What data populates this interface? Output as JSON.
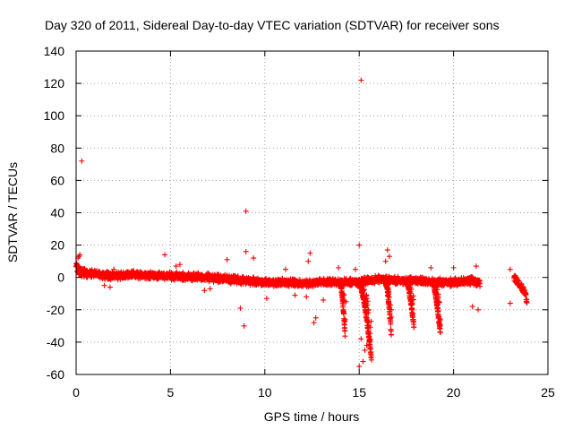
{
  "chart_data": {
    "type": "scatter",
    "title": "Day 320 of 2011, Sidereal Day-to-day VTEC variation (SDTVAR) for receiver sons",
    "xlabel": "GPS time / hours",
    "ylabel": "SDTVAR / TECUs",
    "xlim": [
      0,
      25
    ],
    "ylim": [
      -60,
      140
    ],
    "x_ticks": [
      0,
      5,
      10,
      15,
      20,
      25
    ],
    "y_ticks": [
      -60,
      -40,
      -20,
      0,
      20,
      40,
      60,
      80,
      100,
      120,
      140
    ],
    "x_tick_labels": [
      "0",
      "5",
      "10",
      "15",
      "20",
      "25"
    ],
    "y_tick_labels": [
      "-60",
      "-40",
      "-20",
      "0",
      "20",
      "40",
      "60",
      "80",
      "100",
      "120",
      "140"
    ],
    "grid": true,
    "marker": "+",
    "color": "#ff0000",
    "series": [
      {
        "name": "SDTVAR",
        "baseline": [
          [
            0,
            6
          ],
          [
            0.3,
            3
          ],
          [
            1,
            2
          ],
          [
            2,
            1
          ],
          [
            3,
            1.5
          ],
          [
            4,
            1.5
          ],
          [
            5,
            1
          ],
          [
            6,
            0.5
          ],
          [
            7,
            0
          ],
          [
            8,
            -1
          ],
          [
            9,
            -2
          ],
          [
            10,
            -3
          ],
          [
            11,
            -3
          ],
          [
            12,
            -4
          ],
          [
            13,
            -3
          ],
          [
            14,
            -3
          ],
          [
            15,
            -3
          ],
          [
            16,
            -1
          ],
          [
            17,
            -2
          ],
          [
            18,
            -2
          ],
          [
            19,
            -3
          ],
          [
            20,
            -3
          ],
          [
            21,
            -2
          ],
          [
            21.4,
            -3
          ]
        ],
        "baseline_end": 21.4,
        "late_segment": [
          [
            23.2,
            0
          ],
          [
            23.5,
            -4
          ],
          [
            23.8,
            -10
          ],
          [
            23.9,
            -15
          ]
        ],
        "dips": [
          {
            "x_start": 14.0,
            "x_end": 14.25,
            "min": -35
          },
          {
            "x_start": 15.0,
            "x_end": 15.65,
            "min": -50
          },
          {
            "x_start": 16.4,
            "x_end": 16.7,
            "min": -35
          },
          {
            "x_start": 17.5,
            "x_end": 17.9,
            "min": -30
          },
          {
            "x_start": 18.9,
            "x_end": 19.3,
            "min": -35
          }
        ],
        "points": [
          {
            "x": 0.3,
            "y": 72
          },
          {
            "x": 15.1,
            "y": 122
          },
          {
            "x": 9.0,
            "y": 41
          },
          {
            "x": 8.9,
            "y": -30
          },
          {
            "x": 15.0,
            "y": 20
          },
          {
            "x": 9.0,
            "y": 16
          },
          {
            "x": 16.5,
            "y": 17
          },
          {
            "x": 12.4,
            "y": 15
          },
          {
            "x": 4.7,
            "y": 14
          },
          {
            "x": 9.4,
            "y": 12
          },
          {
            "x": 8.0,
            "y": 11
          },
          {
            "x": 12.3,
            "y": 10
          },
          {
            "x": 13.9,
            "y": 6
          },
          {
            "x": 18.8,
            "y": 6
          },
          {
            "x": 20.0,
            "y": 6
          },
          {
            "x": 21.2,
            "y": 7
          },
          {
            "x": 23.0,
            "y": 5
          },
          {
            "x": 12.7,
            "y": -25
          },
          {
            "x": 12.6,
            "y": -28
          },
          {
            "x": 15.0,
            "y": -55
          },
          {
            "x": 15.2,
            "y": -52
          },
          {
            "x": 15.3,
            "y": -45
          },
          {
            "x": 15.1,
            "y": -38
          },
          {
            "x": 15.4,
            "y": -42
          },
          {
            "x": 16.7,
            "y": -20
          },
          {
            "x": 21.3,
            "y": -20
          },
          {
            "x": 21.0,
            "y": -18
          },
          {
            "x": 23.0,
            "y": -16
          },
          {
            "x": 8.7,
            "y": -19
          },
          {
            "x": 1.5,
            "y": -5
          },
          {
            "x": 1.8,
            "y": -6
          },
          {
            "x": 6.8,
            "y": -8
          },
          {
            "x": 7.1,
            "y": -7
          },
          {
            "x": 12.2,
            "y": -12
          },
          {
            "x": 13.1,
            "y": -14
          },
          {
            "x": 10.1,
            "y": -13
          },
          {
            "x": 11.6,
            "y": -11
          },
          {
            "x": 14.3,
            "y": -15
          },
          {
            "x": 15.5,
            "y": -20
          },
          {
            "x": 17.8,
            "y": -22
          },
          {
            "x": 2.0,
            "y": 5
          },
          {
            "x": 3.0,
            "y": 4
          },
          {
            "x": 5.3,
            "y": 7
          },
          {
            "x": 5.5,
            "y": 8
          },
          {
            "x": 11.1,
            "y": 5
          },
          {
            "x": 0.2,
            "y": 14
          },
          {
            "x": 0.1,
            "y": 12
          },
          {
            "x": 0.15,
            "y": 13
          },
          {
            "x": 14.8,
            "y": 5
          },
          {
            "x": 16.4,
            "y": 10
          },
          {
            "x": 16.6,
            "y": 13
          }
        ]
      }
    ]
  }
}
